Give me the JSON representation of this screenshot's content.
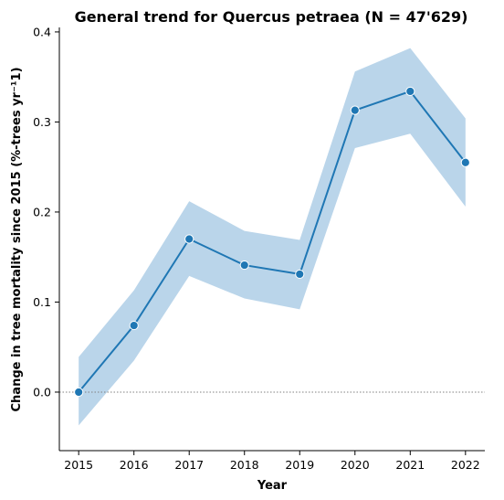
{
  "chart_data": {
    "type": "line",
    "title": "General trend for Quercus petraea  (N = 47'629)",
    "xlabel": "Year",
    "ylabel": "Change in tree mortality since 2015 (%-trees yr⁻¹1)",
    "x": [
      2015,
      2016,
      2017,
      2018,
      2019,
      2020,
      2021,
      2022
    ],
    "x_tick_labels": [
      "2015",
      "2016",
      "2017",
      "2018",
      "2019",
      "2020",
      "2021",
      "2022"
    ],
    "y_tick_labels": [
      "0.0",
      "0.1",
      "0.2",
      "0.3",
      "0.4"
    ],
    "y_ticks": [
      0.0,
      0.1,
      0.2,
      0.3,
      0.4
    ],
    "ylim": [
      -0.065,
      0.405
    ],
    "xlim": [
      2014.65,
      2022.35
    ],
    "series": [
      {
        "values": [
          0.0,
          0.074,
          0.17,
          0.141,
          0.131,
          0.313,
          0.334,
          0.255
        ],
        "ci_lower": [
          -0.037,
          0.035,
          0.129,
          0.104,
          0.092,
          0.271,
          0.287,
          0.206
        ],
        "ci_upper": [
          0.039,
          0.113,
          0.212,
          0.179,
          0.169,
          0.356,
          0.382,
          0.304
        ]
      }
    ],
    "reference_line_y": 0.0,
    "colors": {
      "line": "#1f77b4",
      "band": "#bad5ea",
      "marker_edge": "#ffffff",
      "reference": "#808080"
    },
    "grid": false,
    "legend": "none"
  }
}
